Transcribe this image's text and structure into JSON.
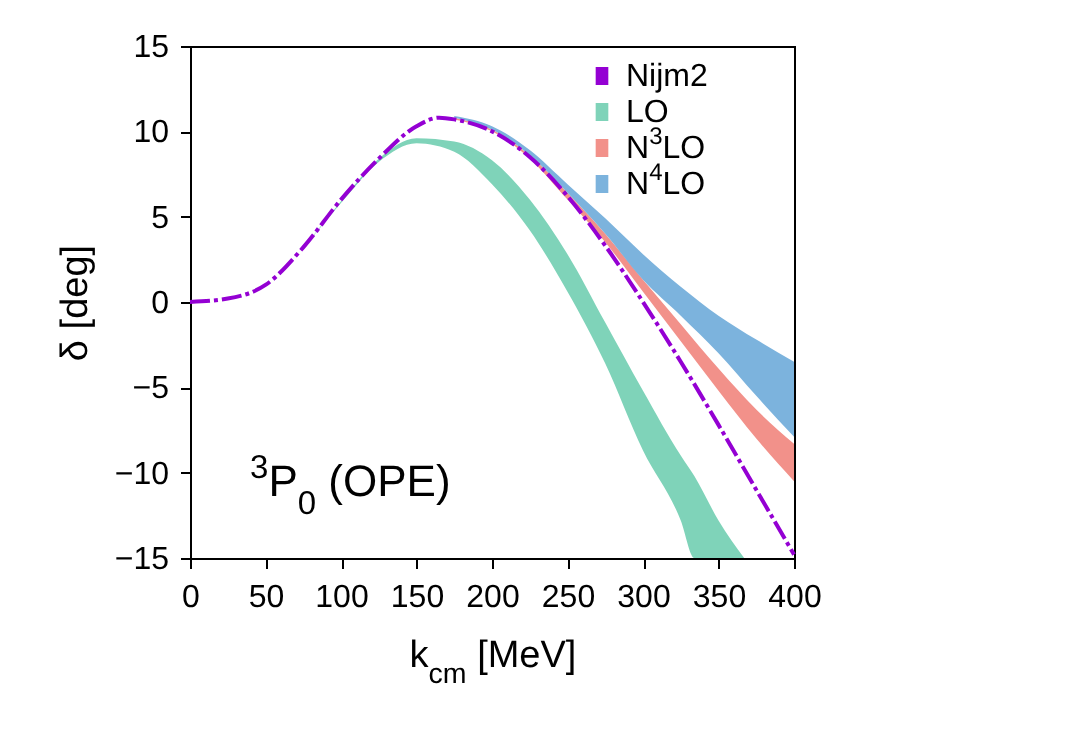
{
  "chart_data": {
    "type": "line",
    "xlabel": "k$_{cm}$ [MeV]",
    "ylabel": "δ [deg]",
    "annotations": [
      "$^{3}$P$_{0}$ (OPE)"
    ],
    "xlim": [
      0,
      400
    ],
    "xticks": [
      0,
      50,
      100,
      150,
      200,
      250,
      300,
      350,
      400
    ],
    "ylim": [
      -15,
      15
    ],
    "yticks": [
      -15,
      -10,
      -5,
      0,
      5,
      10,
      15
    ],
    "grid": false,
    "legend": "top right",
    "series": [
      {
        "name": "Nijm2",
        "color": "#9400d3",
        "line_style": "dashed",
        "x": [
          0,
          25,
          50,
          75,
          100,
          125,
          150,
          165,
          175,
          200,
          225,
          250,
          275,
          300,
          325,
          350,
          375,
          400
        ],
        "values": [
          0,
          0.2,
          1.0,
          3.2,
          6.0,
          8.4,
          10.3,
          10.8,
          10.7,
          10.0,
          8.5,
          6.2,
          3.3,
          0,
          -3.5,
          -7.2,
          -11,
          -14.8
        ]
      },
      {
        "name": "LO",
        "type": "area",
        "color": "#7fd3b9",
        "values": [
          null,
          null,
          null,
          null,
          null,
          null,
          null,
          null,
          null,
          null,
          null,
          null,
          null,
          null,
          null,
          null,
          null
        ],
        "x": [
          0,
          25,
          50,
          75,
          100,
          125,
          150,
          175,
          200,
          225,
          250,
          275,
          300,
          325,
          334,
          350,
          367
        ],
        "lower": [
          0,
          0.2,
          1.0,
          3.2,
          5.8,
          8.2,
          9.3,
          8.8,
          6.9,
          4.2,
          0.6,
          -3.6,
          -8.7,
          -12.8,
          -15,
          -15,
          -15
        ],
        "upper": [
          0,
          0.2,
          1.0,
          3.2,
          5.9,
          8.4,
          9.6,
          9.4,
          8.3,
          6.0,
          2.8,
          -1.2,
          -5.2,
          -9.0,
          -10.2,
          -12.8,
          -15
        ]
      },
      {
        "name": "N$^{3}$LO",
        "type": "area",
        "color": "#f2918a",
        "values": [
          null,
          null,
          null,
          null,
          null,
          null,
          null,
          null,
          null,
          null
        ],
        "x": [
          175,
          200,
          225,
          250,
          275,
          300,
          325,
          350,
          375,
          400
        ],
        "lower": [
          10.7,
          10.0,
          8.4,
          6.0,
          3.5,
          0.6,
          -2.3,
          -5.2,
          -8.0,
          -10.5
        ],
        "upper": [
          10.8,
          10.1,
          8.6,
          6.4,
          4.0,
          1.3,
          -1.3,
          -3.9,
          -6.3,
          -8.3
        ]
      },
      {
        "name": "N$^{4}$LO",
        "type": "area",
        "color": "#7cb3dd",
        "values": [
          null,
          null,
          null,
          null,
          null,
          null,
          null,
          null,
          null,
          null
        ],
        "x": [
          175,
          200,
          225,
          250,
          275,
          300,
          325,
          350,
          375,
          400
        ],
        "lower": [
          10.8,
          10.1,
          8.6,
          6.4,
          4.0,
          1.3,
          -0.8,
          -3.0,
          -5.5,
          -7.9
        ],
        "upper": [
          10.9,
          10.3,
          8.9,
          6.9,
          4.9,
          2.8,
          0.9,
          -0.8,
          -2.2,
          -3.5
        ]
      }
    ]
  }
}
